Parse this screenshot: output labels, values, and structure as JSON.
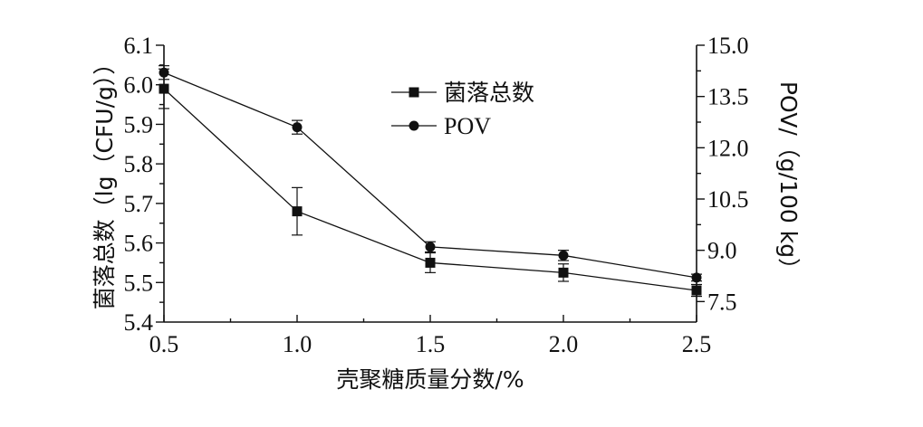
{
  "chart_data": {
    "type": "line",
    "x": [
      0.5,
      1.0,
      1.5,
      2.0,
      2.5
    ],
    "x_ticks": [
      "0.5",
      "1.0",
      "1.5",
      "2.0",
      "2.5"
    ],
    "xlim": [
      0.5,
      2.5
    ],
    "xlabel": "壳聚糖质量分数/%",
    "y_left": {
      "label": "菌落总数（lg（CFU/g））",
      "ylim": [
        5.4,
        6.1
      ],
      "ticks": [
        "5.4",
        "5.5",
        "5.6",
        "5.7",
        "5.8",
        "5.9",
        "6.0",
        "6.1"
      ]
    },
    "y_right": {
      "label": "POV/（g/100 kg）",
      "ylim": [
        6.9,
        15.0
      ],
      "ticks": [
        "7.5",
        "9.0",
        "10.5",
        "12.0",
        "13.5",
        "15.0"
      ]
    },
    "series": [
      {
        "name": "菌落总数",
        "axis": "left",
        "marker": "square",
        "values": [
          5.99,
          5.68,
          5.55,
          5.525,
          5.48
        ],
        "errors": [
          0.05,
          0.06,
          0.025,
          0.022,
          0.015
        ]
      },
      {
        "name": "POV",
        "axis": "right",
        "marker": "circle",
        "values": [
          14.2,
          12.6,
          9.1,
          8.85,
          8.2
        ],
        "errors": [
          0.2,
          0.2,
          0.15,
          0.15,
          0.1
        ]
      }
    ],
    "legend": "top-center",
    "grid": false
  }
}
